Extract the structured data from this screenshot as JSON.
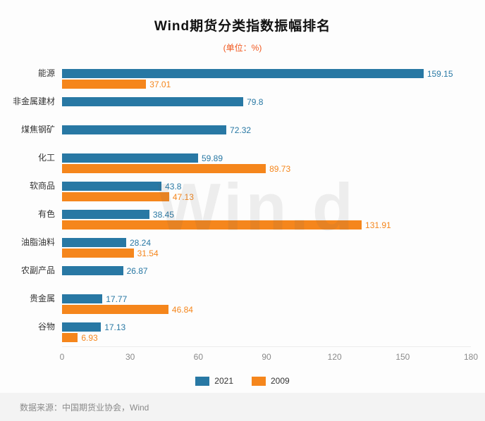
{
  "chart_data": {
    "type": "bar",
    "orientation": "horizontal",
    "title": "Wind期货分类指数振幅排名",
    "subtitle": "(单位：%)",
    "categories": [
      "能源",
      "非金属建材",
      "煤焦钢矿",
      "化工",
      "软商品",
      "有色",
      "油脂油料",
      "农副产品",
      "贵金属",
      "谷物"
    ],
    "series": [
      {
        "name": "2021",
        "color": "#2878a4",
        "values": [
          159.15,
          79.8,
          72.32,
          59.89,
          43.8,
          38.45,
          28.24,
          26.87,
          17.77,
          17.13
        ]
      },
      {
        "name": "2009",
        "color": "#f5861c",
        "values": [
          37.01,
          null,
          null,
          89.73,
          47.13,
          131.91,
          31.54,
          null,
          46.84,
          6.93
        ]
      }
    ],
    "xlim": [
      0,
      180
    ],
    "xticks": [
      0,
      30,
      60,
      90,
      120,
      150,
      180
    ],
    "legend_position": "bottom",
    "grid": false
  },
  "watermark": "Win.d",
  "footer": {
    "source": "数据来源：中国期货业协会，Wind"
  },
  "colors": {
    "series_2021": "#2878a4",
    "series_2009": "#f5861c",
    "subtitle_text": "#f0561d",
    "axis_text": "#8a8a8a",
    "category_text": "#333333",
    "footer_text": "#8a8a8a",
    "footer_band": "#f3f3f3"
  }
}
